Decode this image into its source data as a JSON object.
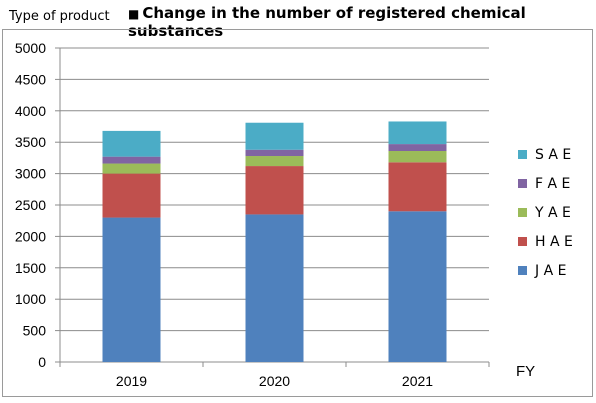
{
  "header": {
    "y_unit_label": "Type of product",
    "title_marker": "■",
    "title": "Change in the number of registered chemical substances"
  },
  "chart_data": {
    "type": "bar",
    "stacked": true,
    "title": "Change in the number of registered chemical substances",
    "ylabel": "Type of product",
    "xlabel": "FY",
    "categories": [
      "2019",
      "2020",
      "2021"
    ],
    "ylim": [
      0,
      5000
    ],
    "yticks": [
      0,
      500,
      1000,
      1500,
      2000,
      2500,
      3000,
      3500,
      4000,
      4500,
      5000
    ],
    "grid": true,
    "legend_position": "right",
    "series": [
      {
        "name": "J A E",
        "color": "#4f81bd",
        "values": [
          2300,
          2350,
          2400
        ]
      },
      {
        "name": "H A E",
        "color": "#c0504d",
        "values": [
          700,
          770,
          780
        ]
      },
      {
        "name": "Y A E",
        "color": "#9bbb59",
        "values": [
          160,
          160,
          180
        ]
      },
      {
        "name": "F A E",
        "color": "#8064a2",
        "values": [
          110,
          100,
          110
        ]
      },
      {
        "name": "S A E",
        "color": "#4bacc6",
        "values": [
          410,
          430,
          360
        ]
      }
    ]
  }
}
